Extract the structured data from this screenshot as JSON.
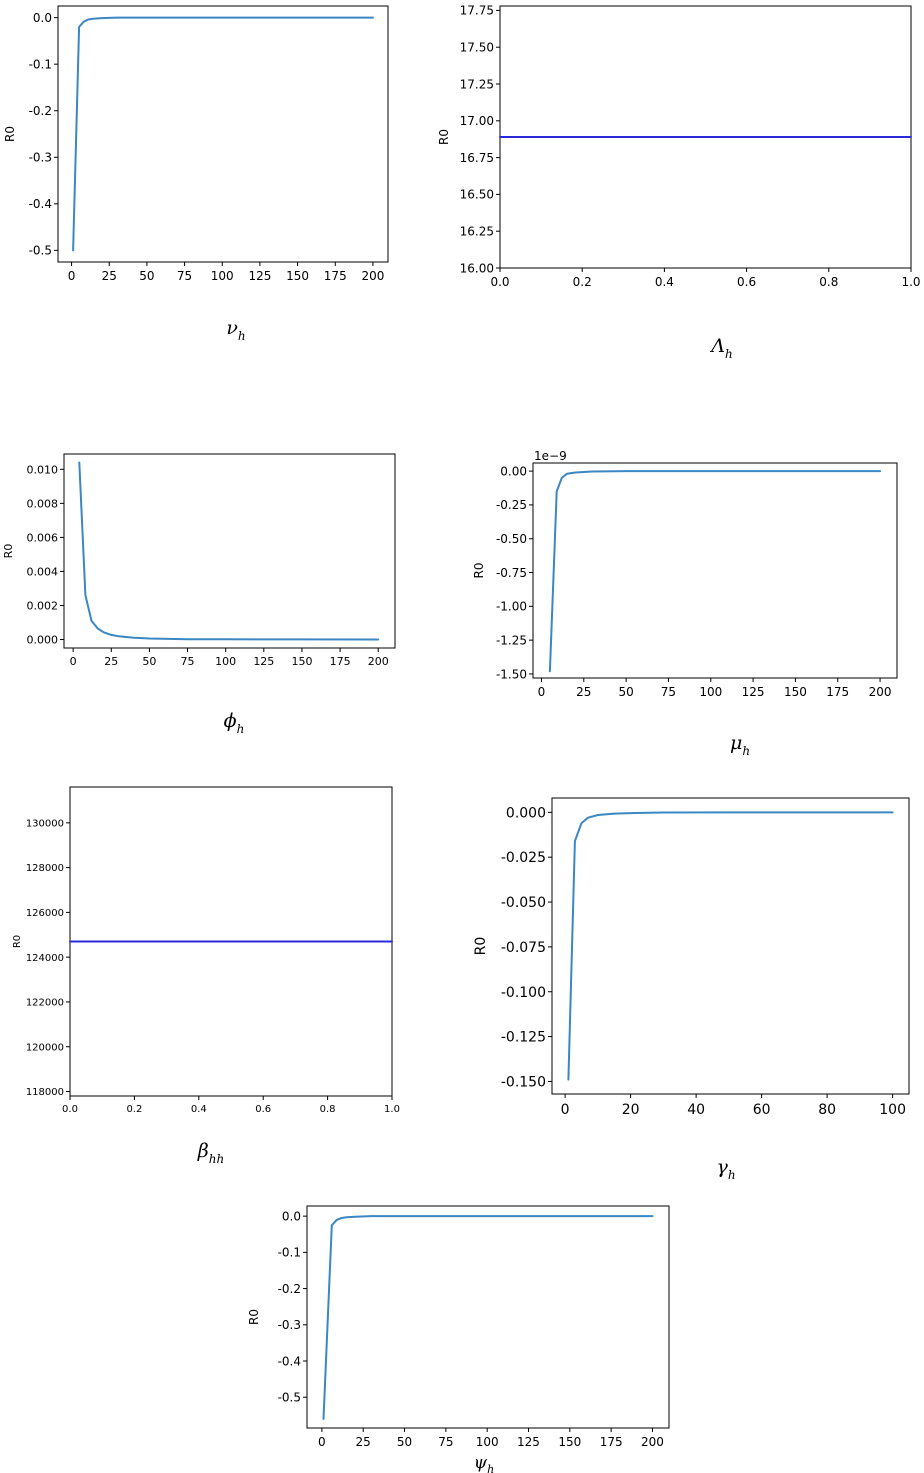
{
  "chart_data": [
    {
      "id": "nu",
      "type": "line",
      "xlabel": "ν",
      "xlabel_sub": "h",
      "ylabel": "R0",
      "xlim": [
        -9,
        210
      ],
      "ylim": [
        -0.525,
        0.025
      ],
      "xticks": [
        0,
        25,
        50,
        75,
        100,
        125,
        150,
        175,
        200
      ],
      "xtick_labels": [
        "0",
        "25",
        "50",
        "75",
        "100",
        "125",
        "150",
        "175",
        "200"
      ],
      "yticks": [
        0.0,
        -0.1,
        -0.2,
        -0.3,
        -0.4,
        -0.5
      ],
      "ytick_labels": [
        "0.0",
        "-0.1",
        "-0.2",
        "-0.3",
        "-0.4",
        "-0.5"
      ],
      "color": "#3a87c4",
      "series": [
        {
          "x": [
            1,
            5,
            8,
            11,
            15,
            20,
            30,
            50,
            100,
            150,
            200
          ],
          "y": [
            -0.5,
            -0.02,
            -0.009,
            -0.004,
            -0.002,
            -0.001,
            0,
            0,
            0,
            0,
            0
          ]
        }
      ]
    },
    {
      "id": "lambda",
      "type": "line",
      "xlabel": "Λ",
      "xlabel_sub": "h",
      "ylabel": "R0",
      "xlim": [
        0.0,
        1.0
      ],
      "ylim": [
        16.0,
        17.78
      ],
      "xticks": [
        0.0,
        0.2,
        0.4,
        0.6,
        0.8,
        1.0
      ],
      "xtick_labels": [
        "0.0",
        "0.2",
        "0.4",
        "0.6",
        "0.8",
        "1.0"
      ],
      "yticks": [
        16.0,
        16.25,
        16.5,
        16.75,
        17.0,
        17.25,
        17.5,
        17.75
      ],
      "ytick_labels": [
        "16.00",
        "16.25",
        "16.50",
        "16.75",
        "17.00",
        "17.25",
        "17.50",
        "17.75"
      ],
      "color": "#2a2ad8",
      "series": [
        {
          "x": [
            0.0,
            1.0
          ],
          "y": [
            16.89,
            16.89
          ]
        }
      ]
    },
    {
      "id": "phi",
      "type": "line",
      "xlabel": "ϕ",
      "xlabel_sub": "h",
      "ylabel": "R0",
      "xlim": [
        -6,
        211
      ],
      "ylim": [
        -0.0005,
        0.0109
      ],
      "xticks": [
        0,
        25,
        50,
        75,
        100,
        125,
        150,
        175,
        200
      ],
      "xtick_labels": [
        "0",
        "25",
        "50",
        "75",
        "100",
        "125",
        "150",
        "175",
        "200"
      ],
      "yticks": [
        0.0,
        0.002,
        0.004,
        0.006,
        0.008,
        0.01
      ],
      "ytick_labels": [
        "0.000",
        "0.002",
        "0.004",
        "0.006",
        "0.008",
        "0.010"
      ],
      "color": "#3a87c4",
      "series": [
        {
          "x": [
            4,
            8,
            12,
            16,
            20,
            25,
            30,
            40,
            50,
            75,
            100,
            150,
            200
          ],
          "y": [
            0.0104,
            0.0026,
            0.0011,
            0.00065,
            0.00042,
            0.00027,
            0.00019,
            0.0001,
            6e-05,
            2e-05,
            1e-05,
            3e-06,
            1e-06
          ]
        }
      ]
    },
    {
      "id": "mu",
      "type": "line",
      "xlabel": "μ",
      "xlabel_sub": "h",
      "ylabel": "R0",
      "offset_text": "1e−9",
      "xlim": [
        -5,
        210
      ],
      "ylim": [
        -1.53,
        0.06
      ],
      "xticks": [
        0,
        25,
        50,
        75,
        100,
        125,
        150,
        175,
        200
      ],
      "xtick_labels": [
        "0",
        "25",
        "50",
        "75",
        "100",
        "125",
        "150",
        "175",
        "200"
      ],
      "yticks": [
        0.0,
        -0.25,
        -0.5,
        -0.75,
        -1.0,
        -1.25,
        -1.5
      ],
      "ytick_labels": [
        "0.00",
        "-0.25",
        "-0.50",
        "-0.75",
        "-1.00",
        "-1.25",
        "-1.50"
      ],
      "color": "#3a87c4",
      "series": [
        {
          "x": [
            5,
            9,
            12,
            15,
            20,
            30,
            50,
            100,
            150,
            200
          ],
          "y": [
            -1.48,
            -0.15,
            -0.05,
            -0.02,
            -0.01,
            -0.003,
            0,
            0,
            0,
            0
          ]
        }
      ]
    },
    {
      "id": "beta",
      "type": "line",
      "xlabel": "β",
      "xlabel_sub": "hh",
      "ylabel": "R0",
      "xlim": [
        0.0,
        1.0
      ],
      "ylim": [
        117800,
        131600
      ],
      "xticks": [
        0.0,
        0.2,
        0.4,
        0.6,
        0.8,
        1.0
      ],
      "xtick_labels": [
        "0.0",
        "0.2",
        "0.4",
        "0.6",
        "0.8",
        "1.0"
      ],
      "yticks": [
        118000,
        120000,
        122000,
        124000,
        126000,
        128000,
        130000
      ],
      "ytick_labels": [
        "118000",
        "120000",
        "122000",
        "124000",
        "126000",
        "128000",
        "130000"
      ],
      "color": "#2a2ad8",
      "series": [
        {
          "x": [
            0.0,
            1.0
          ],
          "y": [
            124700,
            124700
          ]
        }
      ]
    },
    {
      "id": "gamma",
      "type": "line",
      "xlabel": "γ",
      "xlabel_sub": "h",
      "ylabel": "R0",
      "xlim": [
        -4,
        105
      ],
      "ylim": [
        -0.157,
        0.008
      ],
      "xticks": [
        0,
        20,
        40,
        60,
        80,
        100
      ],
      "xtick_labels": [
        "0",
        "20",
        "40",
        "60",
        "80",
        "100"
      ],
      "yticks": [
        0.0,
        -0.025,
        -0.05,
        -0.075,
        -0.1,
        -0.125,
        -0.15
      ],
      "ytick_labels": [
        "0.000",
        "-0.025",
        "-0.050",
        "-0.075",
        "-0.100",
        "-0.125",
        "-0.150"
      ],
      "color": "#3a87c4",
      "series": [
        {
          "x": [
            1,
            3,
            5,
            7,
            10,
            15,
            20,
            30,
            50,
            100
          ],
          "y": [
            -0.149,
            -0.016,
            -0.006,
            -0.003,
            -0.0015,
            -0.0007,
            -0.0004,
            -0.0001,
            0,
            0
          ]
        }
      ]
    },
    {
      "id": "psi",
      "type": "line",
      "xlabel": "ψ",
      "xlabel_sub": "h",
      "ylabel": "R0",
      "xlim": [
        -9,
        210
      ],
      "ylim": [
        -0.585,
        0.028
      ],
      "xticks": [
        0,
        25,
        50,
        75,
        100,
        125,
        150,
        175,
        200
      ],
      "xtick_labels": [
        "0",
        "25",
        "50",
        "75",
        "100",
        "125",
        "150",
        "175",
        "200"
      ],
      "yticks": [
        0.0,
        -0.1,
        -0.2,
        -0.3,
        -0.4,
        -0.5
      ],
      "ytick_labels": [
        "0.0",
        "-0.1",
        "-0.2",
        "-0.3",
        "-0.4",
        "-0.5"
      ],
      "color": "#3a87c4",
      "series": [
        {
          "x": [
            1,
            6,
            9,
            12,
            15,
            20,
            30,
            50,
            100,
            150,
            200
          ],
          "y": [
            -0.56,
            -0.025,
            -0.01,
            -0.005,
            -0.003,
            -0.0015,
            0,
            0,
            0,
            0,
            0
          ]
        }
      ]
    }
  ]
}
